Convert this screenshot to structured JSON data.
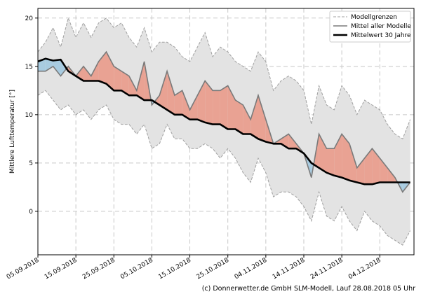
{
  "chart_data": {
    "type": "line",
    "ylabel": "Mittlere Lufttemperatur [°]",
    "ylim": [
      -4.5,
      21
    ],
    "yticks": [
      0,
      5,
      10,
      15,
      20
    ],
    "xticks": [
      "05.09.2018",
      "15.09.2018",
      "25.09.2018",
      "05.10.2018",
      "15.10.2018",
      "25.10.2018",
      "04.11.2018",
      "14.11.2018",
      "24.11.2018",
      "04.12.2018"
    ],
    "xtick_days": [
      0,
      10,
      20,
      30,
      40,
      50,
      60,
      70,
      80,
      90
    ],
    "x_range_days": [
      0,
      99
    ],
    "legend": {
      "position": "top-right",
      "entries": [
        "Modellgrenzen",
        "Mittel aller Modelle",
        "Mittelwert 30 Jahre"
      ]
    },
    "series": [
      {
        "name": "Mittel aller Modelle",
        "day": [
          0,
          2,
          4,
          6,
          8,
          10,
          12,
          14,
          16,
          18,
          20,
          22,
          24,
          26,
          28,
          30,
          32,
          34,
          36,
          38,
          40,
          42,
          44,
          46,
          48,
          50,
          52,
          54,
          56,
          58,
          60,
          62,
          64,
          66,
          68,
          70,
          72,
          74,
          76,
          78,
          80,
          82,
          84,
          86,
          88,
          90,
          92,
          94,
          96,
          98
        ],
        "values": [
          14.5,
          14.5,
          15.0,
          14.0,
          15.0,
          14.0,
          15.0,
          14.0,
          15.5,
          16.5,
          15.0,
          14.5,
          14.0,
          12.5,
          15.5,
          11.0,
          12.0,
          14.5,
          12.0,
          12.5,
          10.5,
          12.0,
          13.5,
          12.5,
          12.5,
          13.0,
          11.5,
          11.0,
          9.5,
          12.0,
          9.5,
          7.0,
          7.5,
          8.0,
          7.0,
          6.0,
          3.5,
          8.0,
          6.5,
          6.5,
          8.0,
          7.0,
          4.5,
          5.5,
          6.5,
          5.5,
          4.5,
          3.5,
          2.0,
          3.0
        ]
      },
      {
        "name": "Mittelwert 30 Jahre",
        "day": [
          0,
          2,
          4,
          6,
          8,
          10,
          12,
          14,
          16,
          18,
          20,
          22,
          24,
          26,
          28,
          30,
          32,
          34,
          36,
          38,
          40,
          42,
          44,
          46,
          48,
          50,
          52,
          54,
          56,
          58,
          60,
          62,
          64,
          66,
          68,
          70,
          72,
          74,
          76,
          78,
          80,
          82,
          84,
          86,
          88,
          90,
          92,
          94,
          96,
          98
        ],
        "values": [
          15.5,
          15.8,
          15.6,
          15.7,
          14.5,
          14.0,
          13.5,
          13.5,
          13.5,
          13.2,
          12.5,
          12.5,
          12.0,
          12.0,
          11.5,
          11.5,
          11.0,
          10.5,
          10.0,
          10.0,
          9.5,
          9.5,
          9.2,
          9.0,
          9.0,
          8.5,
          8.5,
          8.0,
          8.0,
          7.5,
          7.2,
          7.0,
          7.0,
          6.5,
          6.5,
          6.0,
          5.0,
          4.5,
          4.0,
          3.7,
          3.5,
          3.2,
          3.0,
          2.8,
          2.8,
          3.0,
          3.0,
          3.0,
          3.0,
          3.0
        ]
      },
      {
        "name": "Modellgrenzen (max)",
        "day": [
          0,
          2,
          4,
          6,
          8,
          10,
          12,
          14,
          16,
          18,
          20,
          22,
          24,
          26,
          28,
          30,
          32,
          34,
          36,
          38,
          40,
          42,
          44,
          46,
          48,
          50,
          52,
          54,
          56,
          58,
          60,
          62,
          64,
          66,
          68,
          70,
          72,
          74,
          76,
          78,
          80,
          82,
          84,
          86,
          88,
          90,
          92,
          94,
          96,
          98
        ],
        "values": [
          16.5,
          17.5,
          19.0,
          17.0,
          20.0,
          18.0,
          19.5,
          18.0,
          19.5,
          20.0,
          19.0,
          19.5,
          18.0,
          17.0,
          19.0,
          16.5,
          17.5,
          17.5,
          17.0,
          16.0,
          15.5,
          17.0,
          18.5,
          16.0,
          17.0,
          16.5,
          15.5,
          15.0,
          14.5,
          16.5,
          15.5,
          12.5,
          13.5,
          14.0,
          13.5,
          12.5,
          9.0,
          13.0,
          11.0,
          10.5,
          13.0,
          12.0,
          10.0,
          11.5,
          11.0,
          10.5,
          9.0,
          8.0,
          7.5,
          9.5
        ]
      },
      {
        "name": "Modellgrenzen (min)",
        "day": [
          0,
          2,
          4,
          6,
          8,
          10,
          12,
          14,
          16,
          18,
          20,
          22,
          24,
          26,
          28,
          30,
          32,
          34,
          36,
          38,
          40,
          42,
          44,
          46,
          48,
          50,
          52,
          54,
          56,
          58,
          60,
          62,
          64,
          66,
          68,
          70,
          72,
          74,
          76,
          78,
          80,
          82,
          84,
          86,
          88,
          90,
          92,
          94,
          96,
          98
        ],
        "values": [
          12.0,
          12.5,
          11.5,
          10.5,
          11.0,
          10.0,
          10.5,
          9.5,
          10.5,
          11.0,
          9.5,
          9.0,
          9.0,
          8.0,
          9.0,
          6.5,
          7.0,
          9.0,
          7.5,
          7.5,
          6.5,
          6.5,
          7.0,
          6.5,
          5.5,
          6.5,
          5.5,
          4.0,
          3.0,
          5.5,
          4.0,
          1.5,
          2.0,
          2.0,
          1.5,
          0.5,
          -1.0,
          2.0,
          -0.5,
          -1.0,
          0.5,
          -1.0,
          -2.0,
          0.0,
          -1.0,
          -1.5,
          -2.5,
          -3.0,
          -3.5,
          -2.0
        ]
      }
    ]
  },
  "credit": "(c) Donnerwetter.de GmbH SLM-Modell, Lauf 28.08.2018 05 Uhr",
  "colors": {
    "warm": "#e9a293",
    "cold": "#a8cbe0",
    "band": "#e3e3e3",
    "mean_line": "#7a7a7a",
    "climate_line": "#000000",
    "bound_line": "#a0a0a0"
  }
}
